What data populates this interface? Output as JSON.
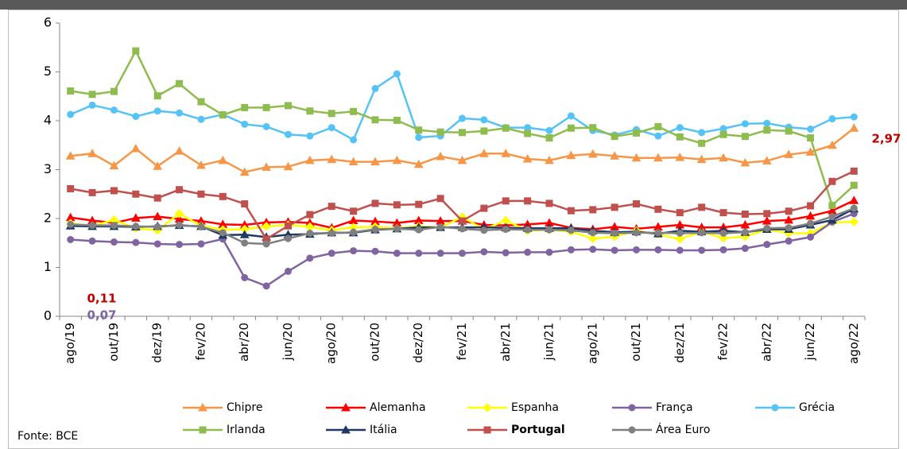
{
  "chart_data": {
    "type": "line",
    "categories": [
      "ago/19",
      null,
      "out/19",
      null,
      "dez/19",
      null,
      "fev/20",
      null,
      "abr/20",
      null,
      "jun/20",
      null,
      "ago/20",
      null,
      "out/20",
      null,
      "dez/20",
      null,
      "fev/21",
      null,
      "abr/21",
      null,
      "jun/21",
      null,
      "ago/21",
      null,
      "out/21",
      null,
      "dez/21",
      null,
      "fev/22",
      null,
      "abr/22",
      null,
      "jun/22",
      null,
      "ago/22"
    ],
    "ylim": [
      0,
      6
    ],
    "yticks": [
      0,
      1,
      2,
      3,
      4,
      5,
      6
    ],
    "grid": false,
    "series": [
      {
        "name": "Chipre",
        "color": "#f79646",
        "marker": "triangle",
        "values": [
          3.28,
          3.33,
          3.08,
          3.43,
          3.07,
          3.38,
          3.09,
          3.19,
          2.95,
          3.05,
          3.06,
          3.19,
          3.21,
          3.16,
          3.16,
          3.19,
          3.11,
          3.27,
          3.19,
          3.33,
          3.33,
          3.22,
          3.19,
          3.29,
          3.32,
          3.28,
          3.24,
          3.24,
          3.25,
          3.21,
          3.24,
          3.14,
          3.18,
          3.31,
          3.36,
          3.5,
          3.85
        ]
      },
      {
        "name": "Alemanha",
        "color": "#ff0000",
        "marker": "triangle",
        "values": [
          2.02,
          1.96,
          1.91,
          2.01,
          2.04,
          1.99,
          1.95,
          1.88,
          1.87,
          1.92,
          1.93,
          1.91,
          1.81,
          1.96,
          1.94,
          1.91,
          1.96,
          1.95,
          1.95,
          1.87,
          1.86,
          1.88,
          1.91,
          1.81,
          1.78,
          1.83,
          1.79,
          1.83,
          1.87,
          1.82,
          1.82,
          1.87,
          1.95,
          1.97,
          2.05,
          2.16,
          2.37
        ]
      },
      {
        "name": "Espanha",
        "color": "#ffff00",
        "marker": "diamond",
        "values": [
          1.9,
          1.85,
          1.97,
          1.8,
          1.76,
          2.1,
          1.85,
          1.77,
          1.78,
          1.84,
          1.87,
          1.83,
          1.76,
          1.82,
          1.83,
          1.8,
          1.84,
          1.82,
          2.03,
          1.78,
          1.96,
          1.75,
          1.77,
          1.73,
          1.59,
          1.63,
          1.75,
          1.68,
          1.58,
          1.73,
          1.6,
          1.63,
          1.78,
          1.7,
          1.7,
          1.92,
          1.93
        ]
      },
      {
        "name": "França",
        "color": "#8064a2",
        "marker": "circle",
        "values": [
          1.57,
          1.54,
          1.52,
          1.51,
          1.48,
          1.47,
          1.48,
          1.58,
          0.79,
          0.62,
          0.92,
          1.19,
          1.29,
          1.34,
          1.33,
          1.29,
          1.29,
          1.29,
          1.29,
          1.32,
          1.3,
          1.31,
          1.31,
          1.36,
          1.37,
          1.35,
          1.36,
          1.36,
          1.35,
          1.35,
          1.36,
          1.39,
          1.47,
          1.54,
          1.62,
          1.93,
          2.1
        ]
      },
      {
        "name": "Grécia",
        "color": "#55c3f5",
        "marker": "circle",
        "values": [
          4.13,
          4.32,
          4.22,
          4.09,
          4.2,
          4.16,
          4.03,
          4.13,
          3.93,
          3.88,
          3.72,
          3.69,
          3.86,
          3.61,
          4.66,
          4.96,
          3.66,
          3.69,
          4.05,
          4.02,
          3.86,
          3.86,
          3.8,
          4.1,
          3.8,
          3.71,
          3.82,
          3.69,
          3.86,
          3.76,
          3.84,
          3.94,
          3.95,
          3.87,
          3.83,
          4.04,
          4.08
        ]
      },
      {
        "name": "Irlanda",
        "color": "#8fbc4e",
        "marker": "square",
        "values": [
          4.61,
          4.54,
          4.6,
          5.43,
          4.51,
          4.76,
          4.39,
          4.12,
          4.27,
          4.27,
          4.31,
          4.2,
          4.15,
          4.19,
          4.02,
          4.01,
          3.81,
          3.77,
          3.76,
          3.79,
          3.85,
          3.74,
          3.65,
          3.85,
          3.86,
          3.68,
          3.75,
          3.88,
          3.67,
          3.54,
          3.72,
          3.68,
          3.81,
          3.79,
          3.65,
          2.27,
          2.68
        ]
      },
      {
        "name": "Itália",
        "color": "#1f3864",
        "marker": "triangle",
        "values": [
          1.85,
          1.84,
          1.84,
          1.83,
          1.84,
          1.86,
          1.84,
          1.66,
          1.67,
          1.62,
          1.67,
          1.68,
          1.71,
          1.71,
          1.77,
          1.79,
          1.82,
          1.82,
          1.82,
          1.82,
          1.81,
          1.8,
          1.8,
          1.8,
          1.75,
          1.72,
          1.73,
          1.69,
          1.75,
          1.73,
          1.75,
          1.72,
          1.78,
          1.78,
          1.87,
          1.97,
          2.2
        ]
      },
      {
        "name": "Portugal",
        "color": "#c0504d",
        "marker": "square",
        "bold": true,
        "values": [
          2.61,
          2.53,
          2.57,
          2.5,
          2.42,
          2.59,
          2.5,
          2.45,
          2.3,
          1.58,
          1.85,
          2.08,
          2.25,
          2.15,
          2.31,
          2.28,
          2.29,
          2.41,
          1.95,
          2.21,
          2.36,
          2.36,
          2.31,
          2.16,
          2.18,
          2.23,
          2.3,
          2.19,
          2.12,
          2.23,
          2.12,
          2.09,
          2.1,
          2.15,
          2.26,
          2.76,
          2.97
        ]
      },
      {
        "name": "Área Euro",
        "color": "#808080",
        "marker": "circle",
        "values": [
          1.88,
          1.86,
          1.86,
          1.84,
          1.83,
          1.87,
          1.83,
          1.71,
          1.5,
          1.48,
          1.59,
          1.7,
          1.7,
          1.72,
          1.78,
          1.79,
          1.77,
          1.83,
          1.79,
          1.76,
          1.78,
          1.77,
          1.77,
          1.76,
          1.71,
          1.7,
          1.71,
          1.71,
          1.7,
          1.71,
          1.7,
          1.72,
          1.8,
          1.81,
          1.9,
          2.04,
          2.21
        ]
      }
    ],
    "annotations": [
      {
        "text": "2,97",
        "color": "#c00000"
      },
      {
        "text": "0,11",
        "color": "#c00000"
      },
      {
        "text": "0,07",
        "color": "#8064a2"
      }
    ],
    "source": "Fonte: BCE"
  }
}
